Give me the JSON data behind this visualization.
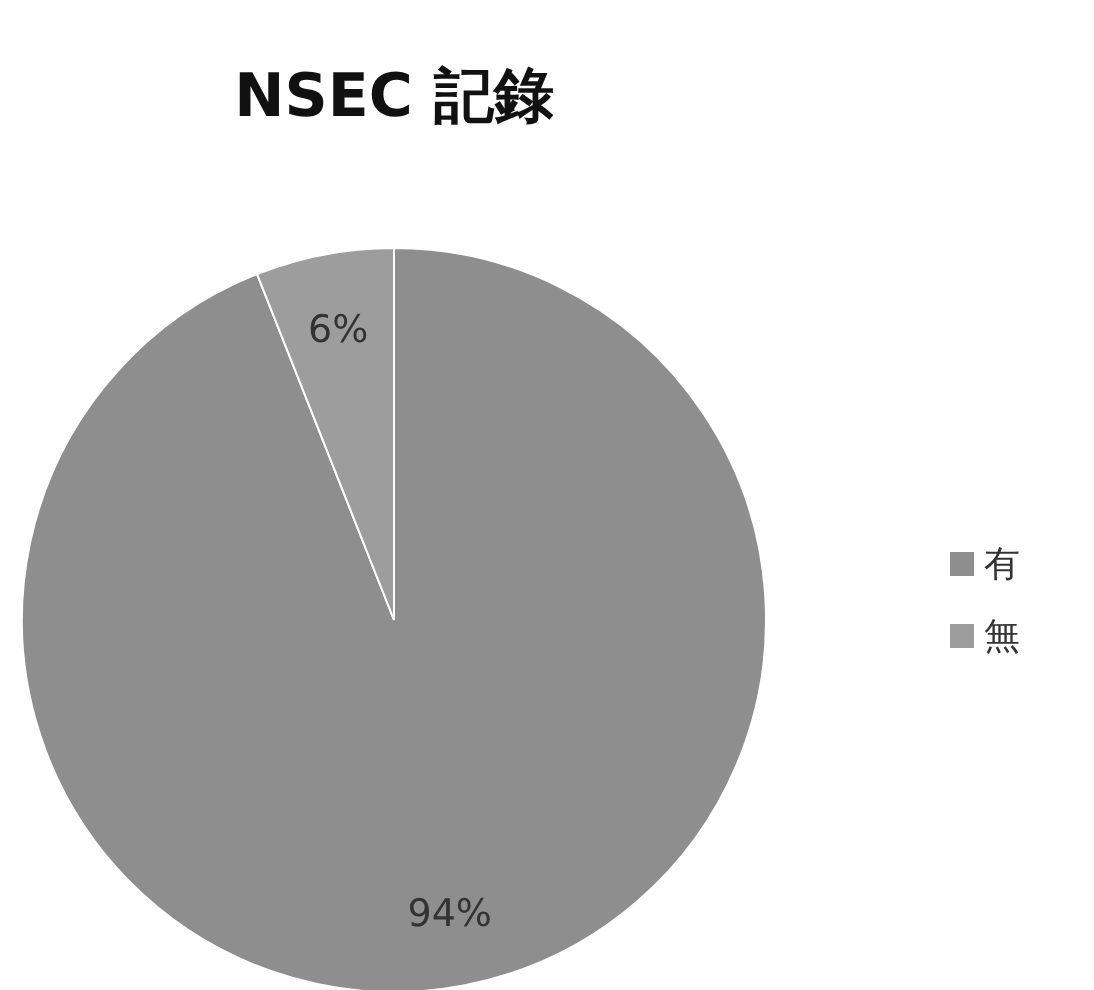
{
  "chart_data": {
    "type": "pie",
    "title": "NSEC 記錄",
    "categories": [
      "有",
      "無"
    ],
    "values": [
      94,
      6
    ],
    "colors": [
      "#8e8e8e",
      "#9d9d9d"
    ],
    "value_labels": [
      "94%",
      "6%"
    ],
    "legend": "right"
  }
}
